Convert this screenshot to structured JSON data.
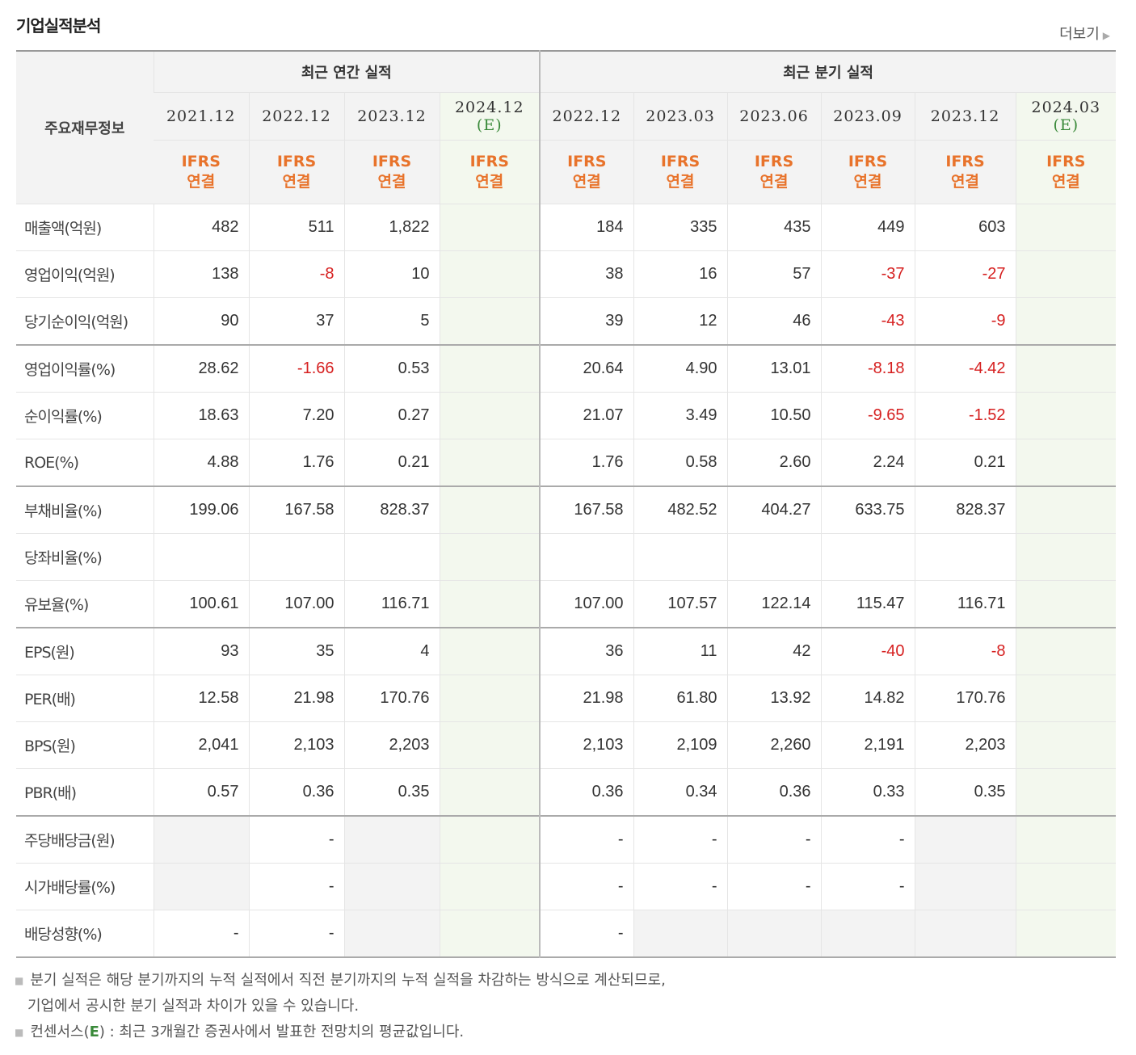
{
  "title": "기업실적분석",
  "more_label": "더보기",
  "header": {
    "row_label": "주요재무정보",
    "annual_group": "최근 연간 실적",
    "quarter_group": "최근 분기 실적",
    "periods": [
      "2021.12",
      "2022.12",
      "2023.12",
      "2024.12",
      "2022.12",
      "2023.03",
      "2023.06",
      "2023.09",
      "2023.12",
      "2024.03"
    ],
    "est_mark": "(E)",
    "ifrs": "IFRS",
    "consol": "연결"
  },
  "rows": [
    {
      "label": "매출액(억원)",
      "values": [
        "482",
        "511",
        "1,822",
        "",
        "184",
        "335",
        "435",
        "449",
        "603",
        ""
      ]
    },
    {
      "label": "영업이익(억원)",
      "values": [
        "138",
        "-8",
        "10",
        "",
        "38",
        "16",
        "57",
        "-37",
        "-27",
        ""
      ]
    },
    {
      "label": "당기순이익(억원)",
      "values": [
        "90",
        "37",
        "5",
        "",
        "39",
        "12",
        "46",
        "-43",
        "-9",
        ""
      ]
    },
    {
      "label": "영업이익률(%)",
      "values": [
        "28.62",
        "-1.66",
        "0.53",
        "",
        "20.64",
        "4.90",
        "13.01",
        "-8.18",
        "-4.42",
        ""
      ]
    },
    {
      "label": "순이익률(%)",
      "values": [
        "18.63",
        "7.20",
        "0.27",
        "",
        "21.07",
        "3.49",
        "10.50",
        "-9.65",
        "-1.52",
        ""
      ]
    },
    {
      "label": "ROE(%)",
      "values": [
        "4.88",
        "1.76",
        "0.21",
        "",
        "1.76",
        "0.58",
        "2.60",
        "2.24",
        "0.21",
        ""
      ]
    },
    {
      "label": "부채비율(%)",
      "values": [
        "199.06",
        "167.58",
        "828.37",
        "",
        "167.58",
        "482.52",
        "404.27",
        "633.75",
        "828.37",
        ""
      ]
    },
    {
      "label": "당좌비율(%)",
      "values": [
        "",
        "",
        "",
        "",
        "",
        "",
        "",
        "",
        "",
        ""
      ]
    },
    {
      "label": "유보율(%)",
      "values": [
        "100.61",
        "107.00",
        "116.71",
        "",
        "107.00",
        "107.57",
        "122.14",
        "115.47",
        "116.71",
        ""
      ]
    },
    {
      "label": "EPS(원)",
      "values": [
        "93",
        "35",
        "4",
        "",
        "36",
        "11",
        "42",
        "-40",
        "-8",
        ""
      ]
    },
    {
      "label": "PER(배)",
      "values": [
        "12.58",
        "21.98",
        "170.76",
        "",
        "21.98",
        "61.80",
        "13.92",
        "14.82",
        "170.76",
        ""
      ]
    },
    {
      "label": "BPS(원)",
      "values": [
        "2,041",
        "2,103",
        "2,203",
        "",
        "2,103",
        "2,109",
        "2,260",
        "2,191",
        "2,203",
        ""
      ]
    },
    {
      "label": "PBR(배)",
      "values": [
        "0.57",
        "0.36",
        "0.35",
        "",
        "0.36",
        "0.34",
        "0.36",
        "0.33",
        "0.35",
        ""
      ]
    },
    {
      "label": "주당배당금(원)",
      "values": [
        "",
        "-",
        "",
        "",
        "-",
        "-",
        "-",
        "-",
        "",
        ""
      ]
    },
    {
      "label": "시가배당률(%)",
      "values": [
        "",
        "-",
        "",
        "",
        "-",
        "-",
        "-",
        "-",
        "",
        ""
      ]
    },
    {
      "label": "배당성향(%)",
      "values": [
        "-",
        "-",
        "",
        "",
        "-",
        "",
        "",
        "",
        "",
        ""
      ]
    }
  ],
  "notes": {
    "line1": "분기 실적은 해당 분기까지의 누적 실적에서 직전 분기까지의 누적 실적을 차감하는 방식으로 계산되므로,",
    "line2": "기업에서 공시한 분기 실적과 차이가 있을 수 있습니다.",
    "line3_prefix": "컨센서스(",
    "line3_e": "E",
    "line3_suffix": ") : 최근 3개월간 증권사에서 발표한 전망치의 평균값입니다."
  }
}
